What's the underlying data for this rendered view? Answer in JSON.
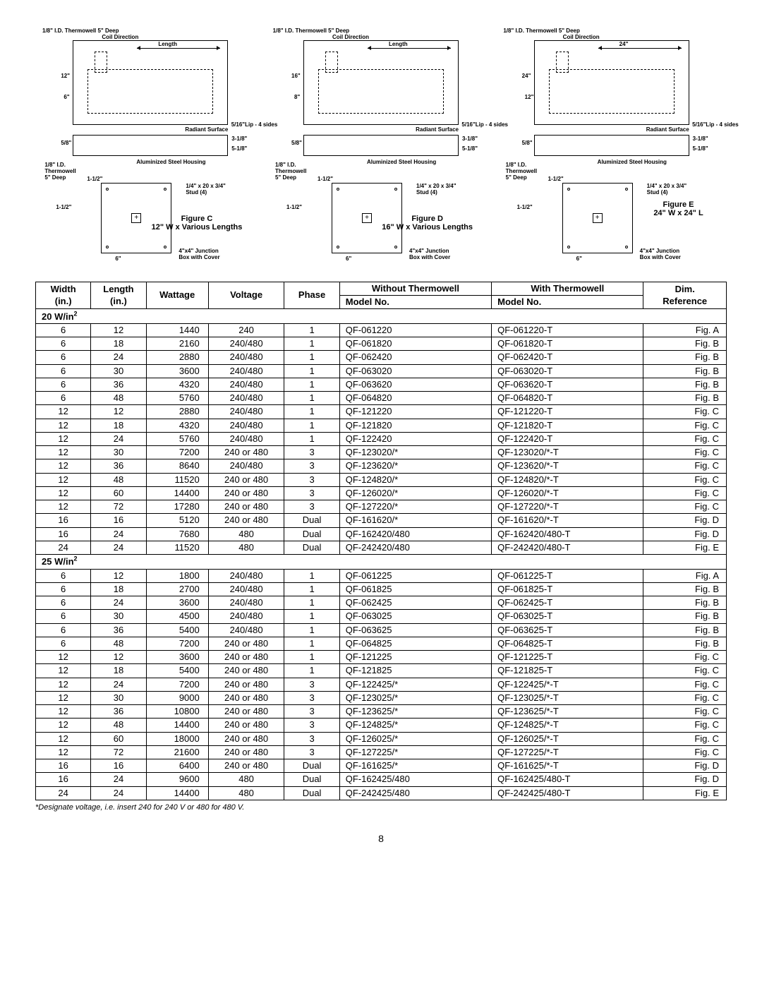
{
  "diagrams": {
    "common_labels": {
      "thermowell": "1/8\" I.D. Thermowell 5\" Deep",
      "coil_direction": "Coil Direction",
      "length": "Length",
      "lip": "5/16\"Lip - 4 sides",
      "radiant_surface": "Radiant Surface",
      "aluminized": "Aluminized Steel Housing",
      "thermowell2": "1/8\" I.D. Thermowell 5\" Deep",
      "stud": "1/4\" x 20 x 3/4\" Stud (4)",
      "junction": "4\"x4\" Junction Box with Cover",
      "dim_5_8": "5/8\"",
      "dim_3_1_8": "3-1/8\"",
      "dim_5_1_8": "5-1/8\"",
      "dim_1_1_2": "1-1/2\"",
      "dim_6": "6\""
    },
    "figC": {
      "side": "12\"",
      "bot": "6\"",
      "title1": "Figure C",
      "title2": "12\" W x Various Lengths"
    },
    "figD": {
      "side": "16\"",
      "bot": "8\"",
      "title1": "Figure D",
      "title2": "16\" W x Various Lengths"
    },
    "figE": {
      "side": "24\"",
      "bot": "12\"",
      "len": "24\"",
      "title1": "Figure E",
      "title2": "24\" W x 24\" L"
    }
  },
  "headers": {
    "width": "Width",
    "width_unit": "(in.)",
    "length": "Length",
    "length_unit": "(in.)",
    "wattage": "Wattage",
    "voltage": "Voltage",
    "phase": "Phase",
    "without": "Without Thermowell",
    "with": "With Thermowell",
    "model_no": "Model No.",
    "dim_ref": "Dim.",
    "reference": "Reference"
  },
  "sections": [
    {
      "title": "20 W/in",
      "rows": [
        [
          "6",
          "12",
          "1440",
          "240",
          "1",
          "QF-061220",
          "QF-061220-T",
          "Fig. A"
        ],
        [
          "6",
          "18",
          "2160",
          "240/480",
          "1",
          "QF-061820",
          "QF-061820-T",
          "Fig. B"
        ],
        [
          "6",
          "24",
          "2880",
          "240/480",
          "1",
          "QF-062420",
          "QF-062420-T",
          "Fig. B"
        ],
        [
          "6",
          "30",
          "3600",
          "240/480",
          "1",
          "QF-063020",
          "QF-063020-T",
          "Fig. B"
        ],
        [
          "6",
          "36",
          "4320",
          "240/480",
          "1",
          "QF-063620",
          "QF-063620-T",
          "Fig. B"
        ],
        [
          "6",
          "48",
          "5760",
          "240/480",
          "1",
          "QF-064820",
          "QF-064820-T",
          "Fig. B"
        ],
        [
          "12",
          "12",
          "2880",
          "240/480",
          "1",
          "QF-121220",
          "QF-121220-T",
          "Fig. C"
        ],
        [
          "12",
          "18",
          "4320",
          "240/480",
          "1",
          "QF-121820",
          "QF-121820-T",
          "Fig. C"
        ],
        [
          "12",
          "24",
          "5760",
          "240/480",
          "1",
          "QF-122420",
          "QF-122420-T",
          "Fig. C"
        ],
        [
          "12",
          "30",
          "7200",
          "240 or 480",
          "3",
          "QF-123020/*",
          "QF-123020/*-T",
          "Fig. C"
        ],
        [
          "12",
          "36",
          "8640",
          "240/480",
          "3",
          "QF-123620/*",
          "QF-123620/*-T",
          "Fig. C"
        ],
        [
          "12",
          "48",
          "11520",
          "240 or 480",
          "3",
          "QF-124820/*",
          "QF-124820/*-T",
          "Fig. C"
        ],
        [
          "12",
          "60",
          "14400",
          "240 or 480",
          "3",
          "QF-126020/*",
          "QF-126020/*-T",
          "Fig. C"
        ],
        [
          "12",
          "72",
          "17280",
          "240 or 480",
          "3",
          "QF-127220/*",
          "QF-127220/*-T",
          "Fig. C"
        ],
        [
          "16",
          "16",
          "5120",
          "240 or 480",
          "Dual",
          "QF-161620/*",
          "QF-161620/*-T",
          "Fig. D"
        ],
        [
          "16",
          "24",
          "7680",
          "480",
          "Dual",
          "QF-162420/480",
          "QF-162420/480-T",
          "Fig. D"
        ],
        [
          "24",
          "24",
          "11520",
          "480",
          "Dual",
          "QF-242420/480",
          "QF-242420/480-T",
          "Fig. E"
        ]
      ]
    },
    {
      "title": "25 W/in",
      "rows": [
        [
          "6",
          "12",
          "1800",
          "240/480",
          "1",
          "QF-061225",
          "QF-061225-T",
          "Fig. A"
        ],
        [
          "6",
          "18",
          "2700",
          "240/480",
          "1",
          "QF-061825",
          "QF-061825-T",
          "Fig. B"
        ],
        [
          "6",
          "24",
          "3600",
          "240/480",
          "1",
          "QF-062425",
          "QF-062425-T",
          "Fig. B"
        ],
        [
          "6",
          "30",
          "4500",
          "240/480",
          "1",
          "QF-063025",
          "QF-063025-T",
          "Fig. B"
        ],
        [
          "6",
          "36",
          "5400",
          "240/480",
          "1",
          "QF-063625",
          "QF-063625-T",
          "Fig. B"
        ],
        [
          "6",
          "48",
          "7200",
          "240 or 480",
          "1",
          "QF-064825",
          "QF-064825-T",
          "Fig. B"
        ],
        [
          "12",
          "12",
          "3600",
          "240 or 480",
          "1",
          "QF-121225",
          "QF-121225-T",
          "Fig. C"
        ],
        [
          "12",
          "18",
          "5400",
          "240 or 480",
          "1",
          "QF-121825",
          "QF-121825-T",
          "Fig. C"
        ],
        [
          "12",
          "24",
          "7200",
          "240 or 480",
          "3",
          "QF-122425/*",
          "QF-122425/*-T",
          "Fig. C"
        ],
        [
          "12",
          "30",
          "9000",
          "240 or 480",
          "3",
          "QF-123025/*",
          "QF-123025/*-T",
          "Fig. C"
        ],
        [
          "12",
          "36",
          "10800",
          "240 or 480",
          "3",
          "QF-123625/*",
          "QF-123625/*-T",
          "Fig. C"
        ],
        [
          "12",
          "48",
          "14400",
          "240 or 480",
          "3",
          "QF-124825/*",
          "QF-124825/*-T",
          "Fig. C"
        ],
        [
          "12",
          "60",
          "18000",
          "240 or 480",
          "3",
          "QF-126025/*",
          "QF-126025/*-T",
          "Fig. C"
        ],
        [
          "12",
          "72",
          "21600",
          "240 or 480",
          "3",
          "QF-127225/*",
          "QF-127225/*-T",
          "Fig. C"
        ],
        [
          "16",
          "16",
          "6400",
          "240 or 480",
          "Dual",
          "QF-161625/*",
          "QF-161625/*-T",
          "Fig. D"
        ],
        [
          "16",
          "24",
          "9600",
          "480",
          "Dual",
          "QF-162425/480",
          "QF-162425/480-T",
          "Fig. D"
        ],
        [
          "24",
          "24",
          "14400",
          "480",
          "Dual",
          "QF-242425/480",
          "QF-242425/480-T",
          "Fig. E"
        ]
      ]
    }
  ],
  "footnote": "*Designate voltage, i.e. insert 240 for 240 V or 480 for 480 V.",
  "page_number": "8"
}
